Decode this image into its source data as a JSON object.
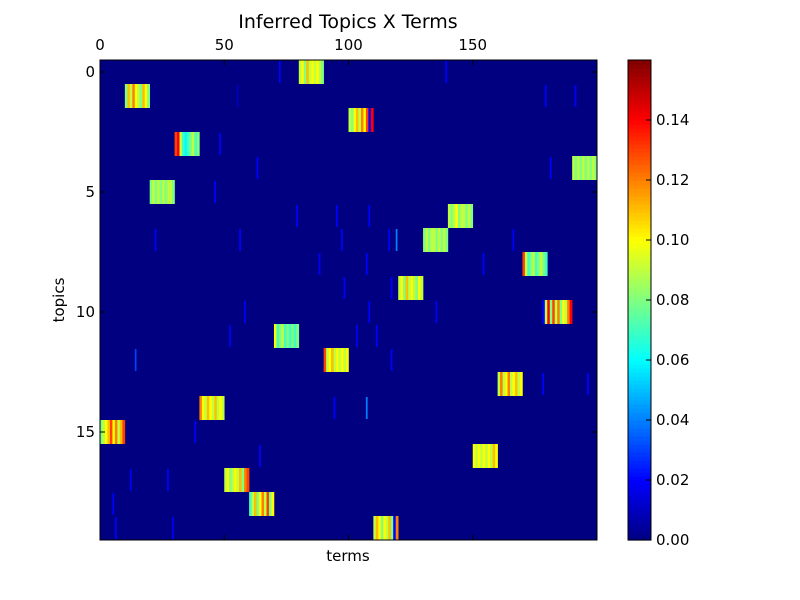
{
  "chart_data": {
    "type": "heatmap",
    "title": "Inferred Topics X Terms",
    "xlabel": "terms",
    "ylabel": "topics",
    "x_ticks": [
      0,
      50,
      100,
      150
    ],
    "y_ticks": [
      0,
      5,
      10,
      15
    ],
    "xlim": [
      0,
      200
    ],
    "ylim": [
      20,
      0
    ],
    "x_axis_position": "top",
    "colormap": "jet",
    "grid": false,
    "colorbar": {
      "position": "right",
      "range": [
        0,
        0.16
      ],
      "ticks": [
        "0.00",
        "0.02",
        "0.04",
        "0.06",
        "0.08",
        "0.10",
        "0.12",
        "0.14"
      ]
    },
    "n_topics": 20,
    "n_terms": 200,
    "background_value": 0.0,
    "topic_blocks": [
      {
        "topic": 0,
        "term_start": 80,
        "term_end": 90,
        "values": [
          0.09,
          0.1,
          0.08,
          0.11,
          0.09,
          0.1,
          0.09,
          0.1,
          0.09,
          0.08
        ]
      },
      {
        "topic": 1,
        "term_start": 10,
        "term_end": 20,
        "values": [
          0.08,
          0.11,
          0.09,
          0.12,
          0.1,
          0.09,
          0.08,
          0.11,
          0.1,
          0.08
        ]
      },
      {
        "topic": 2,
        "term_start": 100,
        "term_end": 110,
        "values": [
          0.09,
          0.08,
          0.1,
          0.11,
          0.09,
          0.12,
          0.1,
          0.13,
          0.02,
          0.14
        ]
      },
      {
        "topic": 3,
        "term_start": 30,
        "term_end": 40,
        "values": [
          0.13,
          0.14,
          0.09,
          0.07,
          0.06,
          0.07,
          0.08,
          0.09,
          0.07,
          0.08
        ]
      },
      {
        "topic": 4,
        "term_start": 190,
        "term_end": 200,
        "values": [
          0.09,
          0.08,
          0.09,
          0.08,
          0.09,
          0.08,
          0.09,
          0.08,
          0.09,
          0.08
        ]
      },
      {
        "topic": 5,
        "term_start": 20,
        "term_end": 30,
        "values": [
          0.08,
          0.09,
          0.08,
          0.09,
          0.08,
          0.09,
          0.08,
          0.09,
          0.09,
          0.08
        ]
      },
      {
        "topic": 6,
        "term_start": 140,
        "term_end": 150,
        "values": [
          0.09,
          0.08,
          0.09,
          0.1,
          0.08,
          0.09,
          0.09,
          0.08,
          0.09,
          0.08
        ]
      },
      {
        "topic": 7,
        "term_start": 130,
        "term_end": 140,
        "values": [
          0.08,
          0.09,
          0.08,
          0.09,
          0.09,
          0.08,
          0.09,
          0.08,
          0.09,
          0.08
        ]
      },
      {
        "topic": 8,
        "term_start": 170,
        "term_end": 180,
        "values": [
          0.13,
          0.09,
          0.07,
          0.08,
          0.09,
          0.07,
          0.08,
          0.09,
          0.08,
          0.07
        ]
      },
      {
        "topic": 9,
        "term_start": 120,
        "term_end": 130,
        "values": [
          0.09,
          0.1,
          0.08,
          0.11,
          0.09,
          0.1,
          0.09,
          0.08,
          0.1,
          0.09
        ]
      },
      {
        "topic": 10,
        "term_start": 178,
        "term_end": 190,
        "values": [
          0.02,
          0.09,
          0.14,
          0.08,
          0.13,
          0.09,
          0.12,
          0.08,
          0.1,
          0.09,
          0.12,
          0.14
        ]
      },
      {
        "topic": 11,
        "term_start": 70,
        "term_end": 80,
        "values": [
          0.1,
          0.07,
          0.08,
          0.09,
          0.07,
          0.08,
          0.07,
          0.08,
          0.07,
          0.08
        ]
      },
      {
        "topic": 12,
        "term_start": 90,
        "term_end": 100,
        "values": [
          0.13,
          0.09,
          0.1,
          0.11,
          0.09,
          0.1,
          0.09,
          0.1,
          0.09,
          0.1
        ]
      },
      {
        "topic": 13,
        "term_start": 160,
        "term_end": 170,
        "values": [
          0.09,
          0.12,
          0.09,
          0.1,
          0.12,
          0.09,
          0.1,
          0.11,
          0.09,
          0.1
        ]
      },
      {
        "topic": 14,
        "term_start": 40,
        "term_end": 50,
        "values": [
          0.12,
          0.1,
          0.09,
          0.11,
          0.1,
          0.09,
          0.11,
          0.09,
          0.1,
          0.09
        ]
      },
      {
        "topic": 15,
        "term_start": 0,
        "term_end": 10,
        "values": [
          0.08,
          0.09,
          0.1,
          0.11,
          0.13,
          0.1,
          0.12,
          0.09,
          0.11,
          0.13
        ]
      },
      {
        "topic": 16,
        "term_start": 150,
        "term_end": 160,
        "values": [
          0.1,
          0.09,
          0.1,
          0.09,
          0.1,
          0.09,
          0.1,
          0.09,
          0.11,
          0.1
        ]
      },
      {
        "topic": 17,
        "term_start": 50,
        "term_end": 60,
        "values": [
          0.09,
          0.1,
          0.08,
          0.09,
          0.1,
          0.09,
          0.11,
          0.08,
          0.12,
          0.13
        ]
      },
      {
        "topic": 18,
        "term_start": 60,
        "term_end": 70,
        "values": [
          0.07,
          0.09,
          0.11,
          0.08,
          0.1,
          0.12,
          0.09,
          0.13,
          0.08,
          0.1
        ]
      },
      {
        "topic": 19,
        "term_start": 110,
        "term_end": 120,
        "values": [
          0.09,
          0.11,
          0.1,
          0.08,
          0.1,
          0.09,
          0.11,
          0.08,
          0.02,
          0.12
        ]
      }
    ],
    "minor_marks": [
      {
        "topic": 0,
        "term": 72,
        "value": 0.02
      },
      {
        "topic": 0,
        "term": 139,
        "value": 0.02
      },
      {
        "topic": 1,
        "term": 55,
        "value": 0.01
      },
      {
        "topic": 1,
        "term": 179,
        "value": 0.02
      },
      {
        "topic": 1,
        "term": 191,
        "value": 0.02
      },
      {
        "topic": 3,
        "term": 48,
        "value": 0.02
      },
      {
        "topic": 4,
        "term": 63,
        "value": 0.02
      },
      {
        "topic": 4,
        "term": 181,
        "value": 0.02
      },
      {
        "topic": 5,
        "term": 46,
        "value": 0.02
      },
      {
        "topic": 6,
        "term": 79,
        "value": 0.02
      },
      {
        "topic": 6,
        "term": 95,
        "value": 0.02
      },
      {
        "topic": 6,
        "term": 108,
        "value": 0.02
      },
      {
        "topic": 7,
        "term": 22,
        "value": 0.02
      },
      {
        "topic": 7,
        "term": 56,
        "value": 0.02
      },
      {
        "topic": 7,
        "term": 97,
        "value": 0.02
      },
      {
        "topic": 7,
        "term": 116,
        "value": 0.02
      },
      {
        "topic": 7,
        "term": 119,
        "value": 0.04
      },
      {
        "topic": 7,
        "term": 166,
        "value": 0.02
      },
      {
        "topic": 8,
        "term": 88,
        "value": 0.02
      },
      {
        "topic": 8,
        "term": 107,
        "value": 0.02
      },
      {
        "topic": 8,
        "term": 154,
        "value": 0.02
      },
      {
        "topic": 9,
        "term": 98,
        "value": 0.02
      },
      {
        "topic": 9,
        "term": 117,
        "value": 0.02
      },
      {
        "topic": 10,
        "term": 58,
        "value": 0.02
      },
      {
        "topic": 10,
        "term": 108,
        "value": 0.02
      },
      {
        "topic": 10,
        "term": 135,
        "value": 0.02
      },
      {
        "topic": 11,
        "term": 52,
        "value": 0.02
      },
      {
        "topic": 11,
        "term": 103,
        "value": 0.02
      },
      {
        "topic": 11,
        "term": 111,
        "value": 0.02
      },
      {
        "topic": 12,
        "term": 14,
        "value": 0.03
      },
      {
        "topic": 12,
        "term": 117,
        "value": 0.02
      },
      {
        "topic": 13,
        "term": 178,
        "value": 0.02
      },
      {
        "topic": 13,
        "term": 196,
        "value": 0.02
      },
      {
        "topic": 14,
        "term": 107,
        "value": 0.04
      },
      {
        "topic": 14,
        "term": 94,
        "value": 0.02
      },
      {
        "topic": 15,
        "term": 38,
        "value": 0.02
      },
      {
        "topic": 16,
        "term": 64,
        "value": 0.02
      },
      {
        "topic": 17,
        "term": 12,
        "value": 0.02
      },
      {
        "topic": 17,
        "term": 27,
        "value": 0.02
      },
      {
        "topic": 18,
        "term": 5,
        "value": 0.02
      },
      {
        "topic": 19,
        "term": 6,
        "value": 0.02
      },
      {
        "topic": 19,
        "term": 29,
        "value": 0.02
      }
    ]
  }
}
